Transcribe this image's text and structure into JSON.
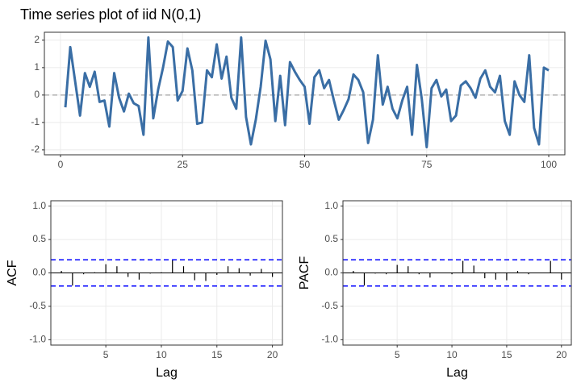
{
  "chart_data": [
    {
      "type": "line",
      "title": "Time series plot of iid N(0,1)",
      "x": [
        1,
        2,
        3,
        4,
        5,
        6,
        7,
        8,
        9,
        10,
        11,
        12,
        13,
        14,
        15,
        16,
        17,
        18,
        19,
        20,
        21,
        22,
        23,
        24,
        25,
        26,
        27,
        28,
        29,
        30,
        31,
        32,
        33,
        34,
        35,
        36,
        37,
        38,
        39,
        40,
        41,
        42,
        43,
        44,
        45,
        46,
        47,
        48,
        49,
        50,
        51,
        52,
        53,
        54,
        55,
        56,
        57,
        58,
        59,
        60,
        61,
        62,
        63,
        64,
        65,
        66,
        67,
        68,
        69,
        70,
        71,
        72,
        73,
        74,
        75,
        76,
        77,
        78,
        79,
        80,
        81,
        82,
        83,
        84,
        85,
        86,
        87,
        88,
        89,
        90,
        91,
        92,
        93,
        94,
        95,
        96,
        97,
        98,
        99,
        100
      ],
      "values": [
        -0.45,
        1.75,
        0.5,
        -0.75,
        0.8,
        0.3,
        0.85,
        -0.25,
        -0.2,
        -1.15,
        0.8,
        -0.1,
        -0.6,
        0.05,
        -0.3,
        -0.4,
        -1.45,
        2.1,
        -0.85,
        0.2,
        1.0,
        1.95,
        1.75,
        -0.2,
        0.15,
        1.7,
        0.9,
        -1.05,
        -1.0,
        0.9,
        0.65,
        1.85,
        0.6,
        1.4,
        -0.1,
        -0.5,
        2.1,
        -0.8,
        -1.8,
        -0.9,
        0.3,
        1.98,
        1.3,
        -0.95,
        0.7,
        -1.1,
        1.2,
        0.85,
        0.55,
        0.3,
        -1.05,
        0.65,
        0.9,
        0.25,
        0.55,
        -0.2,
        -0.9,
        -0.55,
        -0.15,
        0.75,
        0.55,
        0.1,
        -1.75,
        -0.9,
        1.45,
        -0.35,
        0.3,
        -0.5,
        -0.85,
        -0.2,
        0.3,
        -1.45,
        1.1,
        -0.15,
        -1.9,
        0.25,
        0.55,
        -0.05,
        0.2,
        -0.95,
        -0.75,
        0.35,
        0.5,
        0.25,
        -0.1,
        0.6,
        0.9,
        0.3,
        0.1,
        0.7,
        -0.95,
        -1.45,
        0.5,
        0.0,
        -0.25,
        1.45,
        -1.2,
        -1.8,
        1.0,
        0.9
      ],
      "color": "#3a6ea5",
      "reference_line": 0,
      "xlim": [
        -3.3,
        103.3
      ],
      "ylim": [
        -2.18,
        2.29
      ],
      "xticks": [
        0,
        25,
        50,
        75,
        100
      ],
      "yticks": [
        -2,
        -1,
        0,
        1,
        2
      ],
      "grid": true
    },
    {
      "type": "bar",
      "y_label": "ACF",
      "x_label": "Lag",
      "x": [
        1,
        2,
        3,
        4,
        5,
        6,
        7,
        8,
        9,
        10,
        11,
        12,
        13,
        14,
        15,
        16,
        17,
        18,
        19,
        20
      ],
      "values": [
        0.03,
        -0.19,
        -0.02,
        0.01,
        0.13,
        0.1,
        -0.06,
        -0.1,
        -0.01,
        0.01,
        0.2,
        0.1,
        -0.11,
        -0.12,
        -0.03,
        0.1,
        0.07,
        -0.04,
        0.06,
        -0.06
      ],
      "color": "#000000",
      "ci_bounds": [
        0.196,
        -0.196
      ],
      "ci_color": "#0000ff",
      "xlim": [
        0.05,
        20.9
      ],
      "ylim": [
        -1.08,
        1.08
      ],
      "xticks": [
        5,
        10,
        15,
        20
      ],
      "yticks": [
        {
          "value": -1,
          "label": "-1.0"
        },
        {
          "value": -0.5,
          "label": "-0.5"
        },
        {
          "value": 0,
          "label": "0.0"
        },
        {
          "value": 0.5,
          "label": "0.5"
        },
        {
          "value": 1,
          "label": "1.0"
        }
      ],
      "grid": true
    },
    {
      "type": "bar",
      "y_label": "PACF",
      "x_label": "Lag",
      "x": [
        1,
        2,
        3,
        4,
        5,
        6,
        7,
        8,
        9,
        10,
        11,
        12,
        13,
        14,
        15,
        16,
        17,
        18,
        19,
        20
      ],
      "values": [
        0.03,
        -0.19,
        -0.01,
        -0.02,
        0.12,
        0.1,
        -0.02,
        -0.07,
        0.0,
        -0.02,
        0.18,
        0.11,
        -0.08,
        -0.1,
        -0.11,
        0.03,
        -0.02,
        0.0,
        0.18,
        -0.1
      ],
      "color": "#000000",
      "ci_bounds": [
        0.196,
        -0.196
      ],
      "ci_color": "#0000ff",
      "xlim": [
        0.05,
        20.9
      ],
      "ylim": [
        -1.08,
        1.08
      ],
      "xticks": [
        5,
        10,
        15,
        20
      ],
      "yticks": [
        {
          "value": -1,
          "label": "-1.0"
        },
        {
          "value": -0.5,
          "label": "-0.5"
        },
        {
          "value": 0,
          "label": "0.0"
        },
        {
          "value": 0.5,
          "label": "0.5"
        },
        {
          "value": 1,
          "label": "1.0"
        }
      ],
      "grid": true
    }
  ]
}
